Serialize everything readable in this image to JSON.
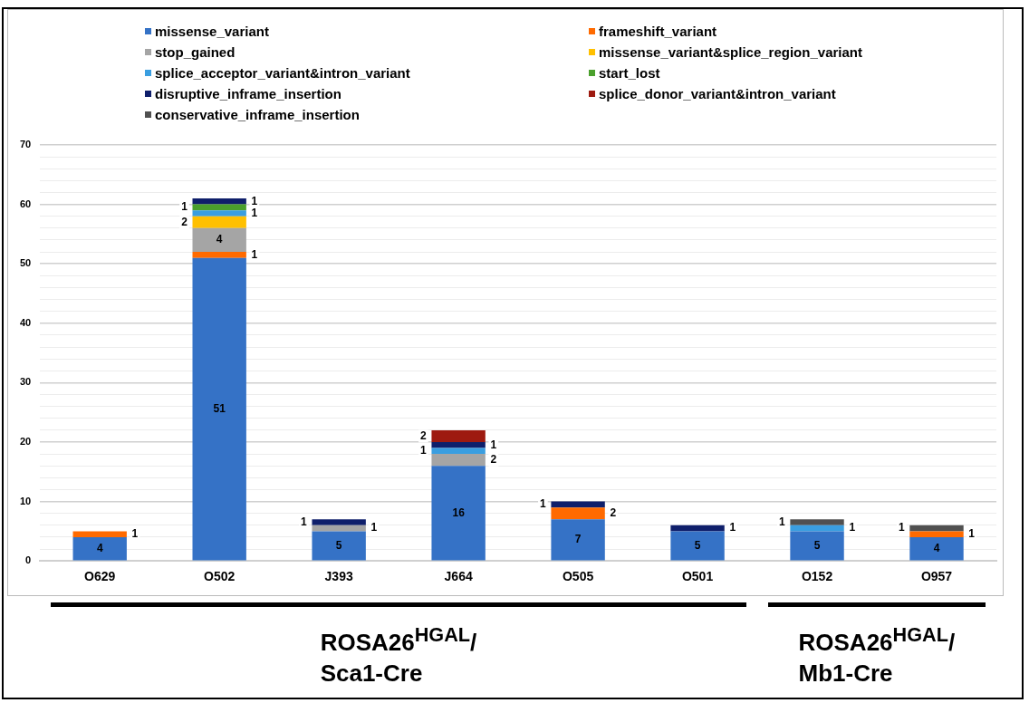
{
  "chart_data": {
    "type": "bar",
    "stacked": true,
    "categories": [
      "O629",
      "O502",
      "J393",
      "J664",
      "O505",
      "O501",
      "O152",
      "O957"
    ],
    "series": [
      {
        "name": "missense_variant",
        "color": "#3572c6",
        "values": [
          4,
          51,
          5,
          16,
          7,
          5,
          5,
          4
        ]
      },
      {
        "name": "frameshift_variant",
        "color": "#ff6a00",
        "values": [
          1,
          1,
          null,
          null,
          2,
          null,
          null,
          1
        ]
      },
      {
        "name": "stop_gained",
        "color": "#a5a5a5",
        "values": [
          null,
          4,
          1,
          2,
          null,
          null,
          null,
          null
        ]
      },
      {
        "name": "missense_variant&splice_region_variant",
        "color": "#ffc000",
        "values": [
          null,
          2,
          null,
          null,
          null,
          null,
          null,
          null
        ]
      },
      {
        "name": "splice_acceptor_variant&intron_variant",
        "color": "#3a9ee0",
        "values": [
          null,
          1,
          null,
          1,
          null,
          null,
          1,
          null
        ]
      },
      {
        "name": "start_lost",
        "color": "#4aa02c",
        "values": [
          null,
          1,
          null,
          null,
          null,
          null,
          null,
          null
        ]
      },
      {
        "name": "disruptive_inframe_insertion",
        "color": "#0f1f6b",
        "values": [
          null,
          1,
          1,
          1,
          1,
          1,
          null,
          null
        ]
      },
      {
        "name": "splice_donor_variant&intron_variant",
        "color": "#9e1a10",
        "values": [
          null,
          null,
          null,
          2,
          null,
          null,
          null,
          null
        ]
      },
      {
        "name": "conservative_inframe_insertion",
        "color": "#505050",
        "values": [
          null,
          null,
          null,
          null,
          null,
          null,
          1,
          1
        ]
      }
    ],
    "ylim": [
      0,
      70
    ],
    "yticks": [
      0,
      {
        "value": 2,
        "label": null
      },
      {
        "value": 4,
        "label": null
      },
      {
        "value": 6,
        "label": null
      },
      {
        "value": 8,
        "label": null
      },
      10,
      {
        "value": 12,
        "label": null
      },
      {
        "value": 14,
        "label": null
      },
      {
        "value": 16,
        "label": null
      },
      {
        "value": 18,
        "label": null
      },
      20,
      {
        "value": 22,
        "label": null
      },
      {
        "value": 24,
        "label": null
      },
      {
        "value": 26,
        "label": null
      },
      {
        "value": 28,
        "label": null
      },
      30,
      {
        "value": 32,
        "label": null
      },
      {
        "value": 34,
        "label": null
      },
      {
        "value": 36,
        "label": null
      },
      {
        "value": 38,
        "label": null
      },
      40,
      {
        "value": 42,
        "label": null
      },
      {
        "value": 44,
        "label": null
      },
      {
        "value": 46,
        "label": null
      },
      {
        "value": 48,
        "label": null
      },
      50,
      {
        "value": 52,
        "label": null
      },
      {
        "value": 54,
        "label": null
      },
      {
        "value": 56,
        "label": null
      },
      {
        "value": 58,
        "label": null
      },
      60,
      {
        "value": 62,
        "label": null
      },
      {
        "value": 64,
        "label": null
      },
      {
        "value": 66,
        "label": null
      },
      {
        "value": 68,
        "label": null
      },
      70
    ],
    "grid": "y",
    "legend": "top",
    "data_labels": true,
    "annotations": [
      "ROSA26$^{HGAL}$/ Sca1-Cre",
      "ROSA26$^{HGAL}$/ Mb1-Cre"
    ]
  }
}
